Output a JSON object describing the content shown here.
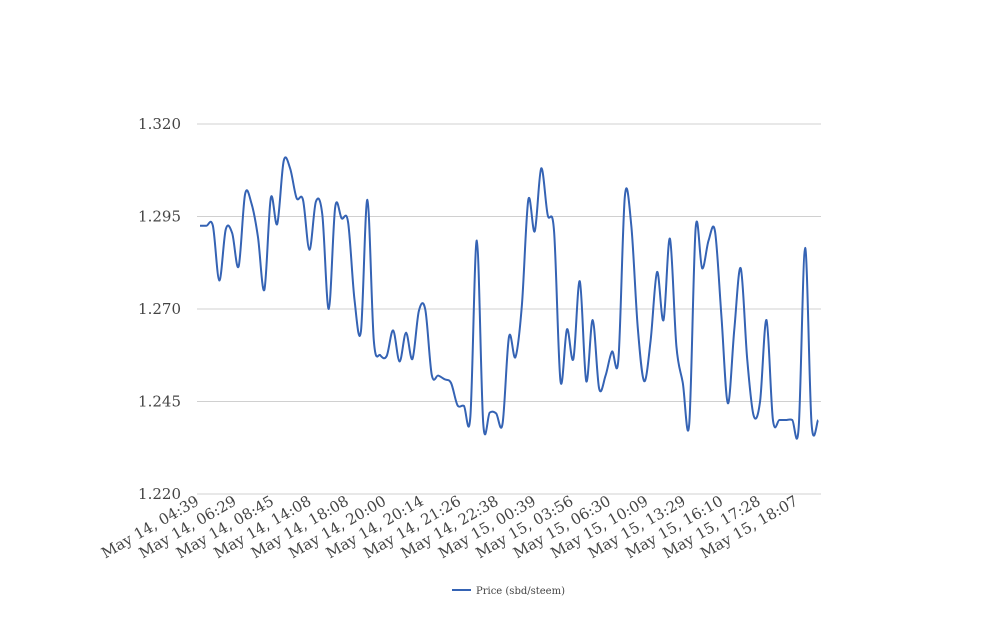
{
  "chart_data": {
    "type": "line",
    "title": "",
    "xlabel": "",
    "ylabel": "",
    "ylim": [
      1.22,
      1.32
    ],
    "yticks": [
      "1.320",
      "1.295",
      "1.270",
      "1.245",
      "1.220"
    ],
    "ytick_values": [
      1.32,
      1.295,
      1.27,
      1.245,
      1.22
    ],
    "xticks": [
      "May 14, 04:39",
      "May 14, 06:29",
      "May 14, 08:45",
      "May 14, 14:08",
      "May 14, 18:08",
      "May 14, 20:00",
      "May 14, 20:14",
      "May 14, 21:26",
      "May 14, 22:38",
      "May 15, 00:39",
      "May 15, 03:56",
      "May 15, 06:30",
      "May 15, 10:09",
      "May 15, 13:29",
      "May 15, 16:10",
      "May 15, 17:28",
      "May 15, 18:07"
    ],
    "grid": true,
    "legend_position": "bottom",
    "color": "#3563b4",
    "series": [
      {
        "name": "Price (sbd/steem)",
        "values": [
          1.2925,
          1.2925,
          1.2925,
          1.2777,
          1.2915,
          1.2905,
          1.2815,
          1.301,
          1.2985,
          1.2895,
          1.2752,
          1.3,
          1.293,
          1.31,
          1.308,
          1.3,
          1.2995,
          1.286,
          1.299,
          1.2955,
          1.27,
          1.2975,
          1.2945,
          1.2935,
          1.2725,
          1.264,
          1.2995,
          1.2615,
          1.2575,
          1.2573,
          1.2642,
          1.2558,
          1.2636,
          1.2565,
          1.2695,
          1.2698,
          1.2522,
          1.252,
          1.251,
          1.25,
          1.244,
          1.2438,
          1.241,
          1.2885,
          1.239,
          1.242,
          1.2418,
          1.239,
          1.2625,
          1.257,
          1.271,
          1.2995,
          1.291,
          1.308,
          1.2955,
          1.291,
          1.2505,
          1.2645,
          1.2565,
          1.2775,
          1.2505,
          1.267,
          1.2485,
          1.252,
          1.2585,
          1.2565,
          1.3005,
          1.2925,
          1.265,
          1.2505,
          1.2615,
          1.28,
          1.267,
          1.289,
          1.26,
          1.25,
          1.239,
          1.292,
          1.281,
          1.2885,
          1.291,
          1.268,
          1.2445,
          1.2645,
          1.281,
          1.2565,
          1.2412,
          1.245,
          1.267,
          1.24,
          1.24,
          1.24,
          1.24,
          1.238,
          1.2865,
          1.239,
          1.24
        ]
      }
    ]
  }
}
